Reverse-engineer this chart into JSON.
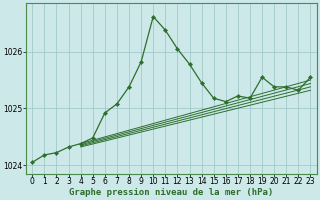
{
  "title": "Graphe pression niveau de la mer (hPa)",
  "background_color": "#cce8e8",
  "grid_color": "#99c4c4",
  "line_color": "#2d6e2d",
  "xlim": [
    -0.5,
    23.5
  ],
  "ylim": [
    1023.85,
    1026.85
  ],
  "yticks": [
    1024,
    1025,
    1026
  ],
  "xticks": [
    0,
    1,
    2,
    3,
    4,
    5,
    6,
    7,
    8,
    9,
    10,
    11,
    12,
    13,
    14,
    15,
    16,
    17,
    18,
    19,
    20,
    21,
    22,
    23
  ],
  "main_x": [
    0,
    1,
    2,
    3,
    4,
    5,
    6,
    7,
    8,
    9,
    10,
    11,
    12,
    13,
    14,
    15,
    16,
    17,
    18,
    19,
    20,
    21,
    22,
    23
  ],
  "main_y": [
    1024.05,
    1024.18,
    1024.22,
    1024.32,
    1024.38,
    1024.48,
    1024.92,
    1025.08,
    1025.38,
    1025.82,
    1026.62,
    1026.38,
    1026.05,
    1025.78,
    1025.45,
    1025.18,
    1025.12,
    1025.22,
    1025.18,
    1025.55,
    1025.38,
    1025.38,
    1025.32,
    1025.55
  ],
  "trend_lines": [
    {
      "x": [
        4,
        23
      ],
      "y": [
        1024.32,
        1025.32
      ]
    },
    {
      "x": [
        4,
        23
      ],
      "y": [
        1024.34,
        1025.38
      ]
    },
    {
      "x": [
        4,
        23
      ],
      "y": [
        1024.36,
        1025.44
      ]
    },
    {
      "x": [
        4,
        23
      ],
      "y": [
        1024.38,
        1025.5
      ]
    }
  ],
  "tick_fontsize": 5.5,
  "xlabel_fontsize": 6.5
}
